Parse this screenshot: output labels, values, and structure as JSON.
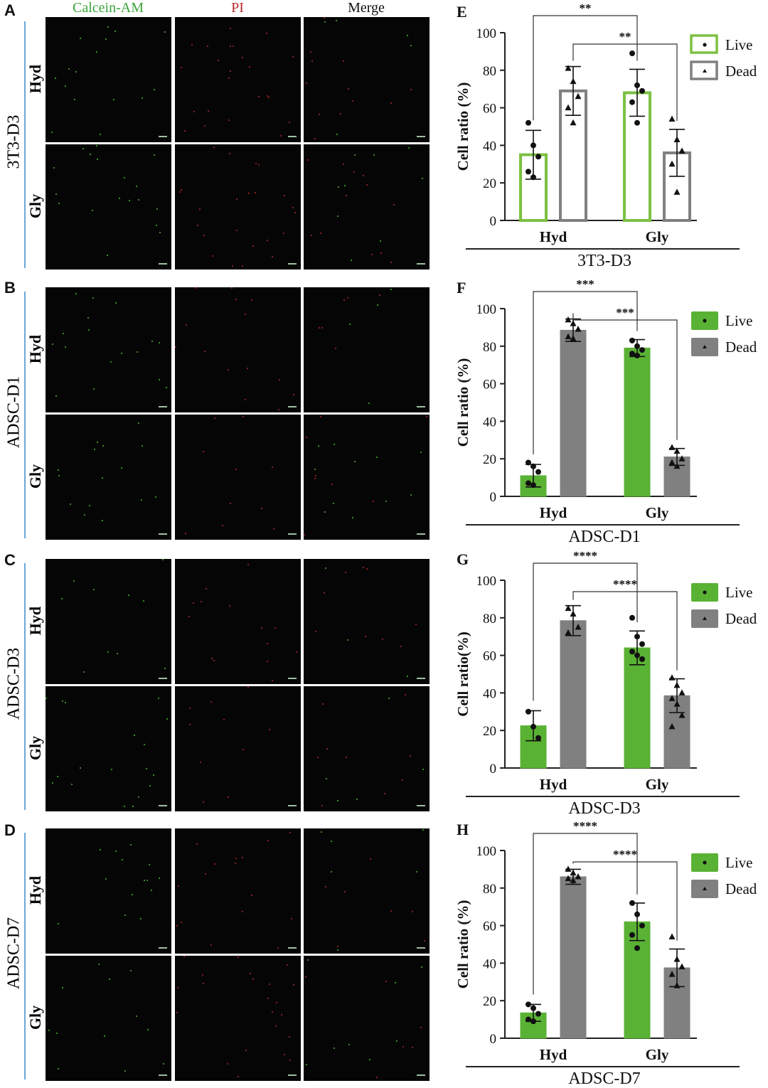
{
  "panels_left": {
    "letters": [
      "A",
      "B",
      "C",
      "D"
    ],
    "columns": [
      "Calcein-AM",
      "PI",
      "Merge"
    ],
    "groups": [
      "3T3-D3",
      "ADSC-D1",
      "ADSC-D3",
      "ADSC-D7"
    ],
    "rows": [
      "Hyd",
      "Gly"
    ]
  },
  "colors": {
    "live_green": "#5ab234",
    "live_green_outline": "#7cc142",
    "dead_gray": "#808080",
    "calcein_label": "#3aa53a",
    "pi_label": "#c0272d"
  },
  "chart_data": [
    {
      "letter": "E",
      "type": "bar",
      "style": "outline",
      "categories": [
        "Hyd",
        "Gly"
      ],
      "series": [
        {
          "name": "Live",
          "values": [
            35,
            68
          ],
          "error": [
            13,
            12.5
          ],
          "points": [
            [
              52,
              40,
              34,
              26,
              23
            ],
            [
              89,
              72,
              69,
              63,
              52
            ]
          ]
        },
        {
          "name": "Dead",
          "values": [
            69,
            36
          ],
          "error": [
            13,
            12.5
          ],
          "points": [
            [
              81,
              74,
              66,
              60,
              52
            ],
            [
              54,
              43,
              37,
              30,
              15
            ]
          ]
        }
      ],
      "ylabel": "Cell ratio (%)",
      "ylim": [
        0,
        100
      ],
      "yticks": [
        0,
        20,
        40,
        60,
        80,
        100
      ],
      "xlabel": "3T3-D3",
      "significance": [
        "**",
        "**"
      ]
    },
    {
      "letter": "F",
      "type": "bar",
      "style": "filled",
      "categories": [
        "Hyd",
        "Gly"
      ],
      "series": [
        {
          "name": "Live",
          "values": [
            11,
            79
          ],
          "error": [
            6,
            4.5
          ],
          "points": [
            [
              18,
              16,
              13,
              7,
              6
            ],
            [
              83,
              80,
              78,
              76,
              75
            ]
          ]
        },
        {
          "name": "Dead",
          "values": [
            88.5,
            21
          ],
          "error": [
            6,
            4.5
          ],
          "points": [
            [
              94,
              92,
              89,
              85,
              84
            ],
            [
              26,
              24,
              20,
              18,
              16
            ]
          ]
        }
      ],
      "ylabel": "Cell ratio (%)",
      "ylim": [
        0,
        100
      ],
      "yticks": [
        0,
        20,
        40,
        60,
        80,
        100
      ],
      "xlabel": "ADSC-D1",
      "significance": [
        "***",
        "***"
      ]
    },
    {
      "letter": "G",
      "type": "bar",
      "style": "filled",
      "categories": [
        "Hyd",
        "Gly"
      ],
      "series": [
        {
          "name": "Live",
          "values": [
            22.5,
            64
          ],
          "error": [
            8,
            9
          ],
          "points": [
            [
              30,
              22,
              16
            ],
            [
              80,
              70,
              66,
              62,
              60,
              58
            ]
          ]
        },
        {
          "name": "Dead",
          "values": [
            78.5,
            38.5
          ],
          "error": [
            8,
            9
          ],
          "points": [
            [
              85,
              82,
              75,
              72
            ],
            [
              48,
              44,
              40,
              37,
              34,
              28,
              22
            ]
          ]
        }
      ],
      "ylabel": "Cell ratio(%)",
      "ylim": [
        0,
        100
      ],
      "yticks": [
        0,
        20,
        40,
        60,
        80,
        100
      ],
      "xlabel": "ADSC-D3",
      "significance": [
        "****",
        "****"
      ]
    },
    {
      "letter": "H",
      "type": "bar",
      "style": "filled",
      "categories": [
        "Hyd",
        "Gly"
      ],
      "series": [
        {
          "name": "Live",
          "values": [
            13.5,
            62
          ],
          "error": [
            4.5,
            10
          ],
          "points": [
            [
              18,
              16,
              13,
              10,
              9
            ],
            [
              72,
              66,
              60,
              55,
              48
            ]
          ]
        },
        {
          "name": "Dead",
          "values": [
            86,
            37.5
          ],
          "error": [
            4,
            10
          ],
          "points": [
            [
              90,
              88,
              86,
              85,
              84
            ],
            [
              54,
              42,
              38,
              34,
              28
            ]
          ]
        }
      ],
      "ylabel": "Cell ratio (%)",
      "ylim": [
        0,
        100
      ],
      "yticks": [
        0,
        20,
        40,
        60,
        80,
        100
      ],
      "xlabel": "ADSC-D7",
      "significance": [
        "****",
        "****"
      ]
    }
  ]
}
